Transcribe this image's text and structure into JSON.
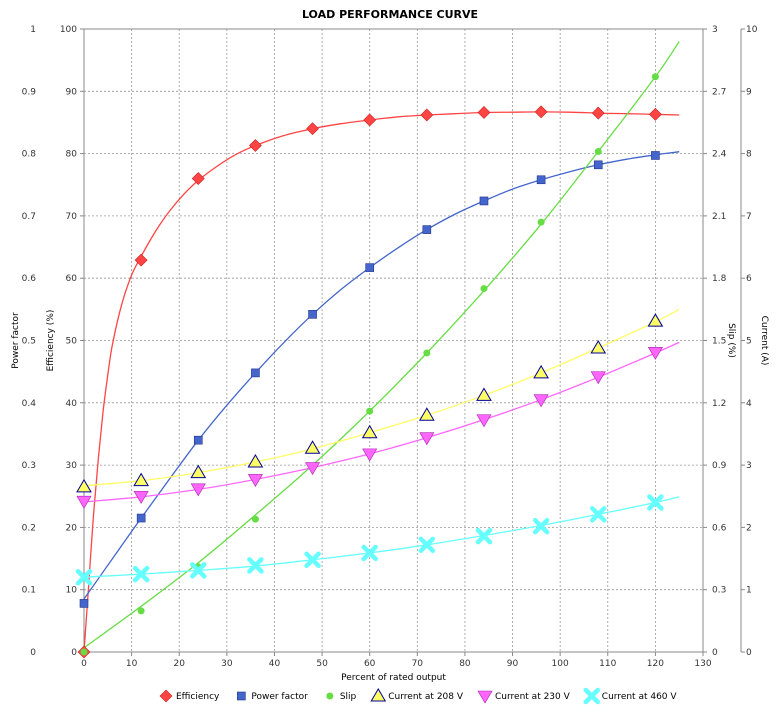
{
  "chart_data": {
    "type": "line",
    "title": "LOAD PERFORMANCE CURVE",
    "xlabel": "Percent of rated output",
    "xlim": [
      0,
      130
    ],
    "xticks": [
      "0",
      "10",
      "20",
      "30",
      "40",
      "50",
      "60",
      "70",
      "80",
      "90",
      "100",
      "110",
      "120",
      "130"
    ],
    "grid": true,
    "legend_position": "bottom",
    "axes": {
      "power_factor": {
        "label": "Power factor",
        "lim": [
          0,
          1
        ],
        "ticks": [
          "0",
          "0.1",
          "0.2",
          "0.3",
          "0.4",
          "0.5",
          "0.6",
          "0.7",
          "0.8",
          "0.9",
          "1"
        ]
      },
      "efficiency": {
        "label": "Efficiency (%)",
        "lim": [
          0,
          100
        ],
        "ticks": [
          "0",
          "10",
          "20",
          "30",
          "40",
          "50",
          "60",
          "70",
          "80",
          "90",
          "100"
        ]
      },
      "slip": {
        "label": "Slip (%)",
        "lim": [
          0,
          3
        ],
        "ticks": [
          "0",
          "0.3",
          "0.6",
          "0.9",
          "1.2",
          "1.5",
          "1.8",
          "2.1",
          "2.4",
          "2.7",
          "3"
        ]
      },
      "current": {
        "label": "Current (A)",
        "lim": [
          0,
          10
        ],
        "ticks": [
          "0",
          "1",
          "2",
          "3",
          "4",
          "5",
          "6",
          "7",
          "8",
          "9",
          "10"
        ]
      }
    },
    "series": [
      {
        "name": "Efficiency",
        "axis": "efficiency",
        "color": "#ff4444",
        "marker": "diamond",
        "points": {
          "x": [
            0,
            12,
            24,
            36,
            48,
            60,
            72,
            84,
            96,
            108,
            120
          ],
          "y": [
            0,
            62.9,
            76,
            81.3,
            84,
            85.4,
            86.2,
            86.6,
            86.7,
            86.5,
            86.3
          ]
        },
        "curve": {
          "x": [
            0,
            1,
            2,
            3,
            4,
            5,
            6,
            8,
            10,
            12,
            15,
            18,
            21,
            24,
            28,
            32,
            36,
            42,
            48,
            54,
            60,
            66,
            72,
            78,
            84,
            90,
            96,
            102,
            108,
            114,
            120,
            125
          ],
          "y": [
            0,
            11,
            22,
            31,
            38.5,
            44.5,
            49.5,
            56,
            60.5,
            63.5,
            67.5,
            70.8,
            73.5,
            75.7,
            78,
            79.9,
            81.3,
            82.9,
            84,
            84.8,
            85.4,
            85.9,
            86.2,
            86.4,
            86.6,
            86.65,
            86.7,
            86.65,
            86.5,
            86.4,
            86.3,
            86.2
          ]
        }
      },
      {
        "name": "Power factor",
        "axis": "power_factor",
        "color": "#4466cc",
        "marker": "square",
        "points": {
          "x": [
            0,
            12,
            24,
            36,
            48,
            60,
            72,
            84,
            96,
            108,
            120
          ],
          "y": [
            0.078,
            0.215,
            0.34,
            0.448,
            0.542,
            0.617,
            0.678,
            0.724,
            0.758,
            0.782,
            0.797
          ]
        },
        "curve": {
          "x": [
            0,
            6,
            12,
            18,
            24,
            30,
            36,
            42,
            48,
            54,
            60,
            66,
            72,
            78,
            84,
            90,
            96,
            102,
            108,
            114,
            120,
            125
          ],
          "y": [
            0.085,
            0.15,
            0.215,
            0.278,
            0.34,
            0.396,
            0.448,
            0.497,
            0.542,
            0.582,
            0.617,
            0.649,
            0.678,
            0.703,
            0.724,
            0.743,
            0.758,
            0.771,
            0.782,
            0.791,
            0.798,
            0.803
          ]
        }
      },
      {
        "name": "Slip",
        "axis": "slip",
        "color": "#66dd44",
        "marker": "circle",
        "points": {
          "x": [
            0,
            12,
            24,
            36,
            48,
            60,
            72,
            84,
            96,
            108,
            120
          ],
          "y": [
            0,
            0.198,
            0.41,
            0.64,
            0.89,
            1.16,
            1.44,
            1.75,
            2.07,
            2.41,
            2.77
          ]
        },
        "curve": {
          "x": [
            0,
            12,
            24,
            36,
            48,
            60,
            72,
            84,
            96,
            108,
            120,
            125
          ],
          "y": [
            0.02,
            0.22,
            0.43,
            0.66,
            0.9,
            1.16,
            1.44,
            1.74,
            2.06,
            2.41,
            2.77,
            2.94
          ]
        }
      },
      {
        "name": "Current at 208 V",
        "axis": "current",
        "color": "#ffff66",
        "marker": "triangle-up",
        "points": {
          "x": [
            0,
            12,
            24,
            36,
            48,
            60,
            72,
            84,
            96,
            108,
            120
          ],
          "y": [
            2.65,
            2.75,
            2.88,
            3.05,
            3.27,
            3.52,
            3.8,
            4.12,
            4.48,
            4.88,
            5.31
          ]
        },
        "curve": {
          "x": [
            0,
            12,
            24,
            36,
            48,
            60,
            72,
            84,
            96,
            108,
            120,
            125
          ],
          "y": [
            2.67,
            2.75,
            2.88,
            3.05,
            3.26,
            3.52,
            3.8,
            4.12,
            4.48,
            4.88,
            5.3,
            5.5
          ]
        }
      },
      {
        "name": "Current at 230 V",
        "axis": "current",
        "color": "#ff66ff",
        "marker": "triangle-down",
        "points": {
          "x": [
            0,
            12,
            24,
            36,
            48,
            60,
            72,
            84,
            96,
            108,
            120
          ],
          "y": [
            2.42,
            2.5,
            2.62,
            2.77,
            2.96,
            3.18,
            3.44,
            3.73,
            4.05,
            4.42,
            4.81
          ]
        },
        "curve": {
          "x": [
            0,
            12,
            24,
            36,
            48,
            60,
            72,
            84,
            96,
            108,
            120,
            125
          ],
          "y": [
            2.41,
            2.49,
            2.61,
            2.77,
            2.96,
            3.18,
            3.44,
            3.73,
            4.05,
            4.41,
            4.8,
            4.97
          ]
        }
      },
      {
        "name": "Current at 460 V",
        "axis": "current",
        "color": "#66ffff",
        "marker": "x",
        "points": {
          "x": [
            0,
            12,
            24,
            36,
            48,
            60,
            72,
            84,
            96,
            108,
            120
          ],
          "y": [
            1.2,
            1.25,
            1.31,
            1.39,
            1.48,
            1.59,
            1.72,
            1.86,
            2.02,
            2.21,
            2.4
          ]
        },
        "curve": {
          "x": [
            0,
            12,
            24,
            36,
            48,
            60,
            72,
            84,
            96,
            108,
            120,
            125
          ],
          "y": [
            1.2,
            1.25,
            1.31,
            1.38,
            1.48,
            1.59,
            1.72,
            1.87,
            2.03,
            2.21,
            2.4,
            2.49
          ]
        }
      }
    ]
  }
}
